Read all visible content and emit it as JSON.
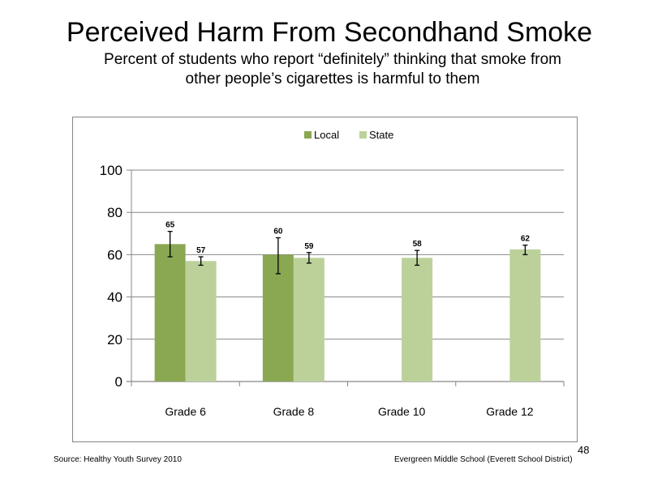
{
  "title": "Perceived  Harm From Secondhand  Smoke",
  "subtitle": {
    "line1": "Percent of students who report “definitely” thinking  that smoke from",
    "line2": "other people’s cigarettes is harmful to them"
  },
  "footer": {
    "source": "Source: Healthy Youth Survey 2010",
    "organization": "Evergreen Middle  School (Everett School District)",
    "page_number": "48"
  },
  "chart_data": {
    "type": "bar",
    "categories": [
      "Grade 6",
      "Grade 8",
      "Grade 10",
      "Grade 12"
    ],
    "series": [
      {
        "name": "Local",
        "color": "#8aa752",
        "values": [
          65,
          60,
          null,
          null
        ],
        "error_low": [
          59,
          51,
          null,
          null
        ],
        "error_high": [
          71,
          68,
          null,
          null
        ],
        "labels": [
          "65",
          "60",
          "",
          ""
        ]
      },
      {
        "name": "State",
        "color": "#bcd19a",
        "values": [
          57,
          58.5,
          58.5,
          62.5
        ],
        "error_low": [
          55,
          56,
          55,
          60
        ],
        "error_high": [
          59,
          61,
          62,
          64.5
        ],
        "labels": [
          "57",
          "59",
          "58",
          "62"
        ]
      }
    ],
    "yticks": [
      "0",
      "20",
      "40",
      "60",
      "80",
      "100"
    ],
    "ylim": [
      0,
      100
    ],
    "grid": true,
    "legend_position": "top"
  }
}
